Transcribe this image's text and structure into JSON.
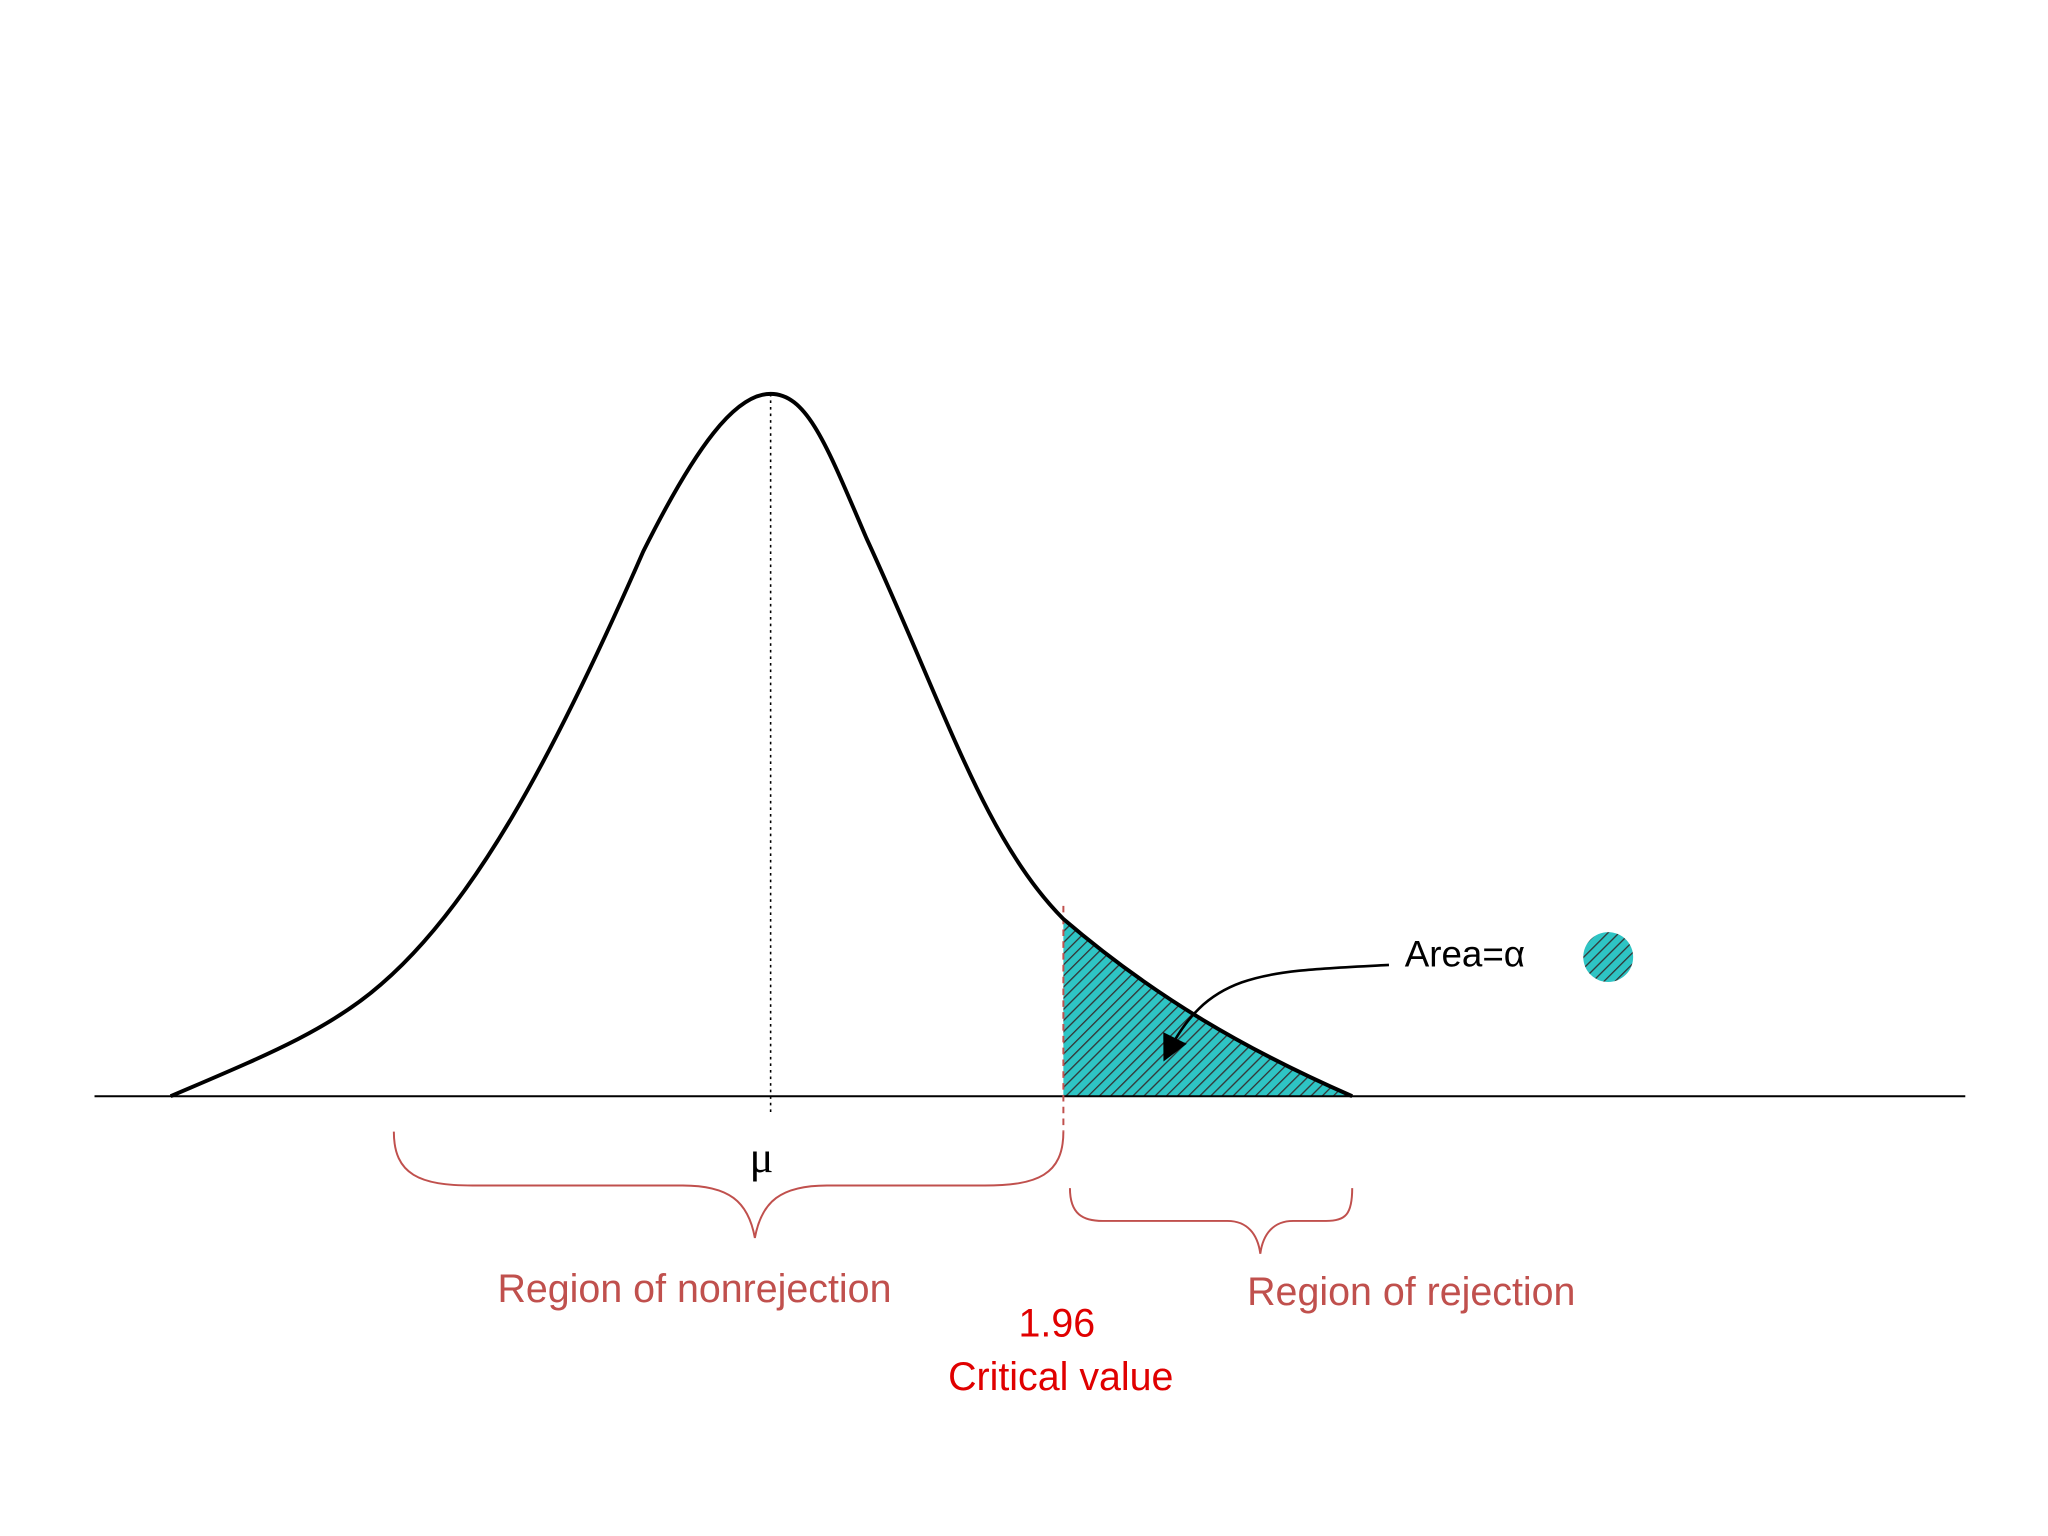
{
  "diagram": {
    "mean_label": "μ",
    "area_label": "Area=α",
    "nonrejection_label": "Region of nonrejection",
    "rejection_label": "Region of rejection",
    "critical_number": "1.96",
    "critical_label": "Critical value"
  }
}
